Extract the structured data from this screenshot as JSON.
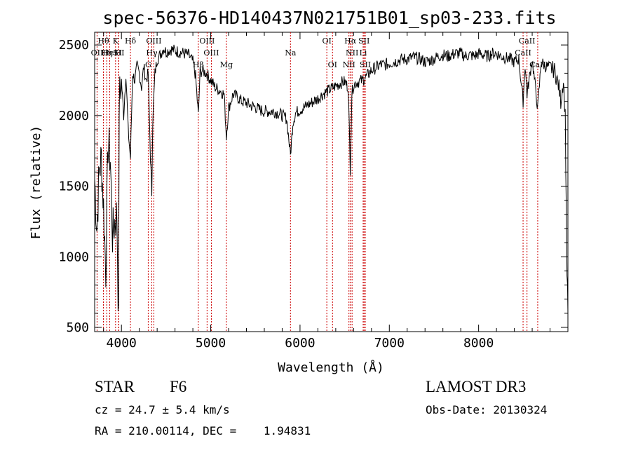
{
  "chart_data": {
    "type": "line",
    "title": "spec-56376-HD140437N021751B01_sp03-233.fits",
    "xlabel": "Wavelength (Å)",
    "ylabel": "Flux (relative)",
    "xlim": [
      3700,
      9000
    ],
    "ylim": [
      470,
      2590
    ],
    "xticks": [
      4000,
      5000,
      6000,
      7000,
      8000
    ],
    "yticks": [
      500,
      1000,
      1500,
      2000,
      2500
    ],
    "grid": false,
    "line_color": "#000000",
    "marker_line_color": "#cc0000",
    "series": [
      {
        "x": [
          3700,
          3725,
          3750,
          3775,
          3800,
          3825,
          3850,
          3875,
          3900,
          3925,
          3950,
          3968,
          3975,
          4000,
          4025,
          4050,
          4075,
          4101,
          4125,
          4150,
          4175,
          4200,
          4225,
          4250,
          4275,
          4300,
          4325,
          4340,
          4350,
          4375,
          4400,
          4425,
          4450,
          4475,
          4500,
          4550,
          4600,
          4650,
          4700,
          4750,
          4800,
          4830,
          4861,
          4880,
          4900,
          4950,
          5000,
          5050,
          5100,
          5150,
          5175,
          5200,
          5250,
          5300,
          5350,
          5400,
          5450,
          5500,
          5550,
          5600,
          5650,
          5700,
          5750,
          5800,
          5850,
          5893,
          5920,
          5950,
          6000,
          6050,
          6100,
          6150,
          6200,
          6250,
          6300,
          6350,
          6400,
          6450,
          6500,
          6540,
          6563,
          6580,
          6600,
          6650,
          6700,
          6750,
          6800,
          6850,
          6900,
          6950,
          7000,
          7050,
          7100,
          7150,
          7200,
          7250,
          7300,
          7350,
          7400,
          7450,
          7500,
          7550,
          7600,
          7650,
          7700,
          7750,
          7800,
          7850,
          7900,
          7950,
          8000,
          8050,
          8100,
          8150,
          8200,
          8250,
          8300,
          8350,
          8400,
          8450,
          8498,
          8520,
          8542,
          8600,
          8662,
          8700,
          8750,
          8800,
          8850,
          8880,
          8900,
          8920,
          8950,
          8970,
          8990,
          9000
        ],
        "y": [
          1550,
          1200,
          1600,
          1700,
          1350,
          900,
          1800,
          1700,
          1150,
          1250,
          1300,
          500,
          2100,
          2250,
          2000,
          2300,
          1900,
          1700,
          2300,
          2250,
          2350,
          2300,
          2200,
          2350,
          2250,
          2300,
          1700,
          1450,
          1950,
          2300,
          2400,
          2420,
          2450,
          2480,
          2450,
          2470,
          2460,
          2450,
          2440,
          2430,
          2380,
          2280,
          2000,
          2300,
          2320,
          2300,
          2250,
          2200,
          2180,
          2150,
          1850,
          2050,
          2150,
          2130,
          2100,
          2090,
          2070,
          2060,
          2040,
          2030,
          2030,
          2030,
          2020,
          2000,
          1980,
          1720,
          1950,
          2020,
          2040,
          2060,
          2080,
          2100,
          2120,
          2150,
          2170,
          2190,
          2210,
          2230,
          2240,
          2200,
          1620,
          2150,
          2220,
          2240,
          2250,
          2280,
          2320,
          2340,
          2360,
          2360,
          2370,
          2380,
          2390,
          2400,
          2400,
          2410,
          2410,
          2400,
          2380,
          2390,
          2400,
          2420,
          2430,
          2420,
          2430,
          2440,
          2440,
          2420,
          2430,
          2420,
          2440,
          2430,
          2420,
          2440,
          2440,
          2420,
          2410,
          2400,
          2380,
          2400,
          2100,
          2360,
          2150,
          2400,
          2050,
          2380,
          2350,
          2340,
          2320,
          2250,
          2200,
          2100,
          2250,
          2000,
          900,
          600
        ]
      }
    ],
    "line_markers": [
      {
        "x": 3727,
        "label": "OII",
        "row": 2
      },
      {
        "x": 3798,
        "label": "Hθ",
        "row": 1
      },
      {
        "x": 3835,
        "label": "Hη",
        "row": 2
      },
      {
        "x": 3869,
        "label": "HeI",
        "row": 2
      },
      {
        "x": 3934,
        "label": "K",
        "row": 1
      },
      {
        "x": 3968,
        "label": "H",
        "row": 2
      },
      {
        "x": 3970,
        "label": "SII",
        "row": 2
      },
      {
        "x": 4101,
        "label": "Hδ",
        "row": 1
      },
      {
        "x": 4300,
        "label": "G",
        "row": 3
      },
      {
        "x": 4340,
        "label": "Hγ",
        "row": 2
      },
      {
        "x": 4363,
        "label": "OIII",
        "row": 1
      },
      {
        "x": 4861,
        "label": "Hβ",
        "row": 3
      },
      {
        "x": 4959,
        "label": "OIII",
        "row": 1
      },
      {
        "x": 5007,
        "label": "OIII",
        "row": 2
      },
      {
        "x": 5175,
        "label": "Mg",
        "row": 3
      },
      {
        "x": 5893,
        "label": "Na",
        "row": 2
      },
      {
        "x": 6300,
        "label": "OI",
        "row": 1
      },
      {
        "x": 6364,
        "label": "OI",
        "row": 3
      },
      {
        "x": 6548,
        "label": "NII",
        "row": 3
      },
      {
        "x": 6563,
        "label": "Hα",
        "row": 1
      },
      {
        "x": 6583,
        "label": "NII",
        "row": 2
      },
      {
        "x": 6707,
        "label": "Li",
        "row": 2
      },
      {
        "x": 6717,
        "label": "SII",
        "row": 1
      },
      {
        "x": 6731,
        "label": "SII",
        "row": 3
      },
      {
        "x": 8498,
        "label": "CaII",
        "row": 2
      },
      {
        "x": 8542,
        "label": "CaII",
        "row": 1
      },
      {
        "x": 8662,
        "label": "CaII",
        "row": 3
      }
    ]
  },
  "info": {
    "class": "STAR",
    "subclass": "F6",
    "survey": "LAMOST DR3",
    "cz": "cz = 24.7 ± 5.4 km/s",
    "obs_date": "Obs-Date: 20130324",
    "radec": "RA = 210.00114, DEC =    1.94831"
  }
}
